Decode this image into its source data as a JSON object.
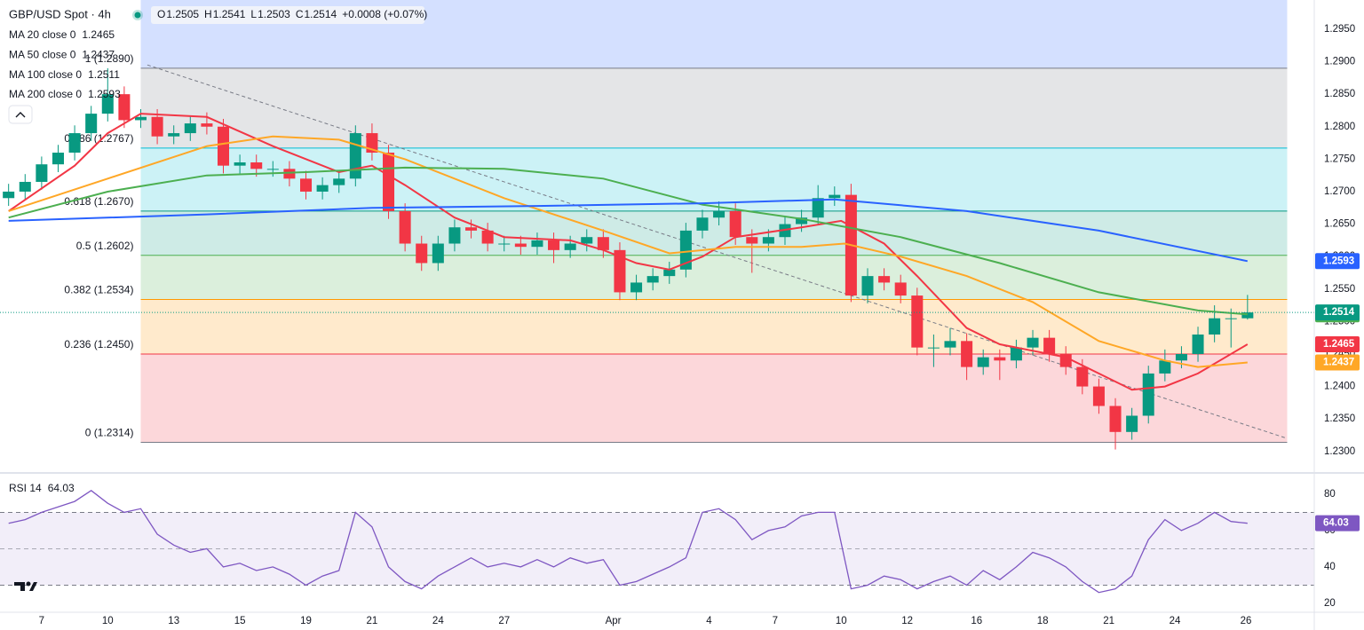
{
  "header": {
    "symbol": "GBP/USD Spot · 4h",
    "ohlc": [
      {
        "label": "O",
        "value": 1.2505
      },
      {
        "label": "H",
        "value": 1.2541
      },
      {
        "label": "L",
        "value": 1.2503
      },
      {
        "label": "C",
        "value": 1.2514
      }
    ],
    "change": "+0.0008 (+0.07%)"
  },
  "chart_data": [
    {
      "type": "candlestick",
      "up_color": "#089981",
      "down_color": "#f23645",
      "xlim": [
        -1.26,
        38.52
      ],
      "ylim": [
        1.2271,
        1.2995
      ],
      "xticks": [
        {
          "value": 0,
          "label": "7"
        },
        {
          "value": 2,
          "label": "10"
        },
        {
          "value": 4,
          "label": "13"
        },
        {
          "value": 6,
          "label": "15"
        },
        {
          "value": 8,
          "label": "19"
        },
        {
          "value": 10,
          "label": "21"
        },
        {
          "value": 12,
          "label": "24"
        },
        {
          "value": 14,
          "label": "27"
        },
        {
          "value": 17.3,
          "label": "Apr"
        },
        {
          "value": 20.2,
          "label": "4"
        },
        {
          "value": 22.2,
          "label": "7"
        },
        {
          "value": 24.2,
          "label": "10"
        },
        {
          "value": 26.2,
          "label": "12"
        },
        {
          "value": 28.3,
          "label": "16"
        },
        {
          "value": 30.3,
          "label": "18"
        },
        {
          "value": 32.3,
          "label": "21"
        },
        {
          "value": 34.3,
          "label": "24"
        },
        {
          "value": 36.45,
          "label": "26"
        }
      ],
      "yticks": [
        {
          "value": 1.23,
          "label": "1.2300"
        },
        {
          "value": 1.235,
          "label": "1.2350"
        },
        {
          "value": 1.24,
          "label": "1.2400"
        },
        {
          "value": 1.245,
          "label": "1.2450"
        },
        {
          "value": 1.25,
          "label": "1.2500"
        },
        {
          "value": 1.255,
          "label": "1.2550"
        },
        {
          "value": 1.26,
          "label": "1.2600"
        },
        {
          "value": 1.265,
          "label": "1.2650"
        },
        {
          "value": 1.27,
          "label": "1.2700"
        },
        {
          "value": 1.275,
          "label": "1.2750"
        },
        {
          "value": 1.28,
          "label": "1.2800"
        },
        {
          "value": 1.285,
          "label": "1.2850"
        },
        {
          "value": 1.29,
          "label": "1.2900"
        },
        {
          "value": 1.295,
          "label": "1.2950"
        }
      ],
      "x": [
        -1,
        -0.5,
        0,
        0.5,
        1,
        1.5,
        2,
        2.5,
        3,
        3.5,
        4,
        4.5,
        5,
        5.5,
        6,
        6.5,
        7,
        7.5,
        8,
        8.5,
        9,
        9.5,
        10,
        10.5,
        11,
        11.5,
        12,
        12.5,
        13,
        13.5,
        14,
        14.5,
        15,
        15.5,
        16,
        16.5,
        17,
        17.5,
        18,
        18.5,
        19,
        19.5,
        20,
        20.5,
        21,
        21.5,
        22,
        22.5,
        23,
        23.5,
        24,
        24.5,
        25,
        25.5,
        26,
        26.5,
        27,
        27.5,
        28,
        28.5,
        29,
        29.5,
        30,
        30.5,
        31,
        31.5,
        32,
        32.5,
        33,
        33.5,
        34,
        34.5,
        35,
        35.5,
        36,
        36.5
      ],
      "ohlc": [
        [
          1.269,
          1.2712,
          1.2678,
          1.27
        ],
        [
          1.27,
          1.2727,
          1.2688,
          1.2715
        ],
        [
          1.2715,
          1.2754,
          1.2703,
          1.2742
        ],
        [
          1.2742,
          1.2772,
          1.273,
          1.276
        ],
        [
          1.276,
          1.2802,
          1.2748,
          1.279
        ],
        [
          1.279,
          1.2832,
          1.2778,
          1.282
        ],
        [
          1.282,
          1.289,
          1.2808,
          1.285
        ],
        [
          1.285,
          1.2862,
          1.2798,
          1.281
        ],
        [
          1.281,
          1.2827,
          1.2798,
          1.2815
        ],
        [
          1.2815,
          1.2827,
          1.2773,
          1.2785
        ],
        [
          1.2785,
          1.2802,
          1.2773,
          1.279
        ],
        [
          1.279,
          1.2817,
          1.2778,
          1.2805
        ],
        [
          1.2805,
          1.2822,
          1.2788,
          1.28
        ],
        [
          1.28,
          1.2812,
          1.2728,
          1.274
        ],
        [
          1.274,
          1.2757,
          1.2728,
          1.2745
        ],
        [
          1.2745,
          1.2757,
          1.2723,
          1.2735
        ],
        [
          1.2735,
          1.2747,
          1.2723,
          1.2735
        ],
        [
          1.2735,
          1.2747,
          1.2708,
          1.272
        ],
        [
          1.272,
          1.2732,
          1.2688,
          1.27
        ],
        [
          1.27,
          1.2722,
          1.2688,
          1.271
        ],
        [
          1.271,
          1.2732,
          1.2698,
          1.272
        ],
        [
          1.272,
          1.2802,
          1.2708,
          1.279
        ],
        [
          1.279,
          1.2805,
          1.2748,
          1.276
        ],
        [
          1.276,
          1.2772,
          1.2658,
          1.267
        ],
        [
          1.267,
          1.2682,
          1.2608,
          1.262
        ],
        [
          1.262,
          1.2632,
          1.2578,
          1.259
        ],
        [
          1.259,
          1.2632,
          1.2578,
          1.262
        ],
        [
          1.262,
          1.2657,
          1.2608,
          1.2645
        ],
        [
          1.2645,
          1.2657,
          1.2628,
          1.264
        ],
        [
          1.264,
          1.2652,
          1.2608,
          1.262
        ],
        [
          1.262,
          1.2632,
          1.2608,
          1.262
        ],
        [
          1.262,
          1.2632,
          1.2603,
          1.2615
        ],
        [
          1.2615,
          1.2637,
          1.2603,
          1.2625
        ],
        [
          1.2625,
          1.2637,
          1.259,
          1.261
        ],
        [
          1.261,
          1.2632,
          1.2598,
          1.262
        ],
        [
          1.262,
          1.2642,
          1.2608,
          1.263
        ],
        [
          1.263,
          1.2642,
          1.2598,
          1.261
        ],
        [
          1.261,
          1.2622,
          1.2533,
          1.2545
        ],
        [
          1.2545,
          1.2572,
          1.2533,
          1.256
        ],
        [
          1.256,
          1.2582,
          1.2548,
          1.257
        ],
        [
          1.257,
          1.2592,
          1.2558,
          1.258
        ],
        [
          1.258,
          1.2652,
          1.2568,
          1.264
        ],
        [
          1.264,
          1.2672,
          1.2628,
          1.266
        ],
        [
          1.266,
          1.2685,
          1.2648,
          1.267
        ],
        [
          1.267,
          1.2682,
          1.2618,
          1.263
        ],
        [
          1.263,
          1.2642,
          1.2575,
          1.262
        ],
        [
          1.262,
          1.2642,
          1.2608,
          1.263
        ],
        [
          1.263,
          1.2662,
          1.2618,
          1.265
        ],
        [
          1.265,
          1.2672,
          1.2638,
          1.266
        ],
        [
          1.266,
          1.271,
          1.2648,
          1.269
        ],
        [
          1.269,
          1.2708,
          1.2678,
          1.2695
        ],
        [
          1.2695,
          1.2712,
          1.253,
          1.254
        ],
        [
          1.254,
          1.2582,
          1.2528,
          1.257
        ],
        [
          1.257,
          1.2582,
          1.2548,
          1.256
        ],
        [
          1.256,
          1.2572,
          1.2528,
          1.254
        ],
        [
          1.254,
          1.2552,
          1.2448,
          1.246
        ],
        [
          1.246,
          1.248,
          1.243,
          1.246
        ],
        [
          1.246,
          1.249,
          1.2448,
          1.247
        ],
        [
          1.247,
          1.2482,
          1.241,
          1.243
        ],
        [
          1.243,
          1.2457,
          1.2418,
          1.2445
        ],
        [
          1.2445,
          1.2457,
          1.241,
          1.244
        ],
        [
          1.244,
          1.2472,
          1.2428,
          1.246
        ],
        [
          1.246,
          1.2487,
          1.2448,
          1.2475
        ],
        [
          1.2475,
          1.2487,
          1.2438,
          1.245
        ],
        [
          1.245,
          1.2462,
          1.2418,
          1.243
        ],
        [
          1.243,
          1.2442,
          1.2388,
          1.24
        ],
        [
          1.24,
          1.2412,
          1.2358,
          1.237
        ],
        [
          1.237,
          1.2382,
          1.2303,
          1.233
        ],
        [
          1.233,
          1.2367,
          1.2318,
          1.2355
        ],
        [
          1.2355,
          1.2432,
          1.2343,
          1.242
        ],
        [
          1.242,
          1.2457,
          1.2408,
          1.244
        ],
        [
          1.244,
          1.2462,
          1.2428,
          1.245
        ],
        [
          1.245,
          1.2492,
          1.2438,
          1.248
        ],
        [
          1.248,
          1.2525,
          1.2468,
          1.2505
        ],
        [
          1.2505,
          1.252,
          1.246,
          1.2505
        ],
        [
          1.2505,
          1.2541,
          1.2503,
          1.2514
        ]
      ],
      "last_price_color": "#089981",
      "series": [
        {
          "name": "MA 20 close 0",
          "color": "#f23645",
          "x": [
            -1,
            1,
            2,
            3,
            5,
            7,
            9,
            10,
            11,
            12.5,
            14,
            16,
            17,
            18,
            19,
            20,
            21,
            23,
            24.2,
            25.5,
            26.5,
            28,
            29,
            30,
            31,
            32,
            33,
            34,
            35,
            36.5
          ],
          "values": [
            1.267,
            1.274,
            1.279,
            1.282,
            1.2815,
            1.277,
            1.273,
            1.274,
            1.271,
            1.266,
            1.263,
            1.2625,
            1.261,
            1.259,
            1.258,
            1.26,
            1.263,
            1.2645,
            1.2655,
            1.262,
            1.257,
            1.249,
            1.2465,
            1.2455,
            1.2445,
            1.242,
            1.2395,
            1.24,
            1.242,
            1.2465
          ]
        },
        {
          "name": "MA 50 close 0",
          "color": "#ffa726",
          "x": [
            -1,
            2,
            5,
            7,
            9,
            11,
            14,
            17,
            19,
            21,
            23,
            24.3,
            26,
            28,
            30,
            32,
            34,
            35,
            36.5
          ],
          "values": [
            1.267,
            1.272,
            1.277,
            1.2785,
            1.278,
            1.275,
            1.269,
            1.264,
            1.2605,
            1.2615,
            1.2615,
            1.262,
            1.26,
            1.257,
            1.253,
            1.247,
            1.244,
            1.243,
            1.2437
          ]
        },
        {
          "name": "MA 100 close 0",
          "color": "#4caf50",
          "x": [
            -1,
            2,
            5,
            8,
            11,
            14,
            17,
            20,
            23,
            26,
            29,
            32,
            35,
            36.5
          ],
          "values": [
            1.266,
            1.27,
            1.2725,
            1.273,
            1.2737,
            1.2735,
            1.272,
            1.268,
            1.2658,
            1.263,
            1.259,
            1.2545,
            1.2517,
            1.2511
          ]
        },
        {
          "name": "MA 200 close 0",
          "color": "#2962ff",
          "x": [
            -1,
            5,
            10,
            15,
            20,
            24,
            28,
            32,
            36.5
          ],
          "values": [
            1.2655,
            1.2665,
            1.2675,
            1.2678,
            1.2682,
            1.2688,
            1.267,
            1.264,
            1.2593
          ]
        }
      ],
      "fib_x": [
        3.0,
        37.7
      ],
      "fib_above_color": "#2962ff",
      "fib_levels": [
        {
          "label": "1 (1.2890)",
          "value": 1.289,
          "color": "#787b86"
        },
        {
          "label": "0.786 (1.2767)",
          "value": 1.2767,
          "color": "#00bcd4"
        },
        {
          "label": "0.618 (1.2670)",
          "value": 1.267,
          "color": "#089981"
        },
        {
          "label": "0.5 (1.2602)",
          "value": 1.2602,
          "color": "#4caf50"
        },
        {
          "label": "0.382 (1.2534)",
          "value": 1.2534,
          "color": "#ff9800"
        },
        {
          "label": "0.236 (1.2450)",
          "value": 1.245,
          "color": "#f23645"
        },
        {
          "label": "0 (1.2314)",
          "value": 1.2314,
          "color": "#787b86"
        }
      ],
      "trendline": {
        "x": [
          3.2,
          37.7
        ],
        "y": [
          1.2895,
          1.232
        ],
        "color": "#787b86"
      }
    },
    {
      "type": "line",
      "name": "RSI 14",
      "color": "#7e57c2",
      "xlim": [
        -1.26,
        38.52
      ],
      "ylim": [
        15.1,
        90.7
      ],
      "yticks": [
        20,
        40,
        60,
        80
      ],
      "band": [
        30,
        70
      ],
      "midline": 50,
      "x": [
        -1,
        -0.5,
        0,
        0.5,
        1,
        1.5,
        2,
        2.5,
        3,
        3.5,
        4,
        4.5,
        5,
        5.5,
        6,
        6.5,
        7,
        7.5,
        8,
        8.5,
        9,
        9.5,
        10,
        10.5,
        11,
        11.5,
        12,
        12.5,
        13,
        13.5,
        14,
        14.5,
        15,
        15.5,
        16,
        16.5,
        17,
        17.5,
        18,
        18.5,
        19,
        19.5,
        20,
        20.5,
        21,
        21.5,
        22,
        22.5,
        23,
        23.5,
        24,
        24.5,
        25,
        25.5,
        26,
        26.5,
        27,
        27.5,
        28,
        28.5,
        29,
        29.5,
        30,
        30.5,
        31,
        31.5,
        32,
        32.5,
        33,
        33.5,
        34,
        34.5,
        35,
        35.5,
        36,
        36.5
      ],
      "values": [
        64,
        66,
        70,
        73,
        76,
        82,
        75,
        70,
        72,
        58,
        52,
        48,
        50,
        40,
        42,
        38,
        40,
        36,
        30,
        35,
        38,
        70,
        62,
        40,
        32,
        28,
        35,
        40,
        45,
        40,
        42,
        40,
        44,
        40,
        45,
        42,
        44,
        30,
        32,
        36,
        40,
        45,
        70,
        72,
        66,
        55,
        60,
        62,
        68,
        70,
        70,
        28,
        30,
        35,
        33,
        28,
        32,
        35,
        30,
        38,
        33,
        40,
        48,
        45,
        40,
        32,
        26,
        28,
        35,
        55,
        66,
        60,
        64,
        70,
        65,
        64.03
      ]
    }
  ]
}
